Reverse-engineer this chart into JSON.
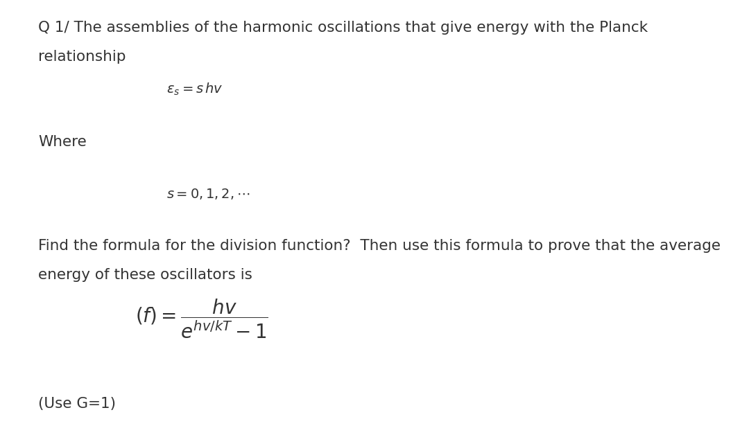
{
  "background_color": "#ffffff",
  "figsize": [
    10.8,
    6.41
  ],
  "dpi": 100,
  "title_line1": "Q 1/ The assemblies of the harmonic oscillations that give energy with the Planck",
  "title_line2": "relationship",
  "formula1": "$\\mathit{\\varepsilon}_s = s\\, hv$",
  "where_text": "Where",
  "formula2": "$s = 0, 1, 2, \\cdots$",
  "body_line1": "Find the formula for the division function?  Then use this formula to prove that the average",
  "body_line2": "energy of these oscillators is",
  "formula3": "$(\\mathit{f}) = \\dfrac{hv}{e^{hv/kT} - 1}$",
  "footer": "(Use G=1)",
  "text_color": "#333333",
  "main_fontsize": 15.5,
  "formula_fontsize": 14,
  "big_formula_fontsize": 20
}
